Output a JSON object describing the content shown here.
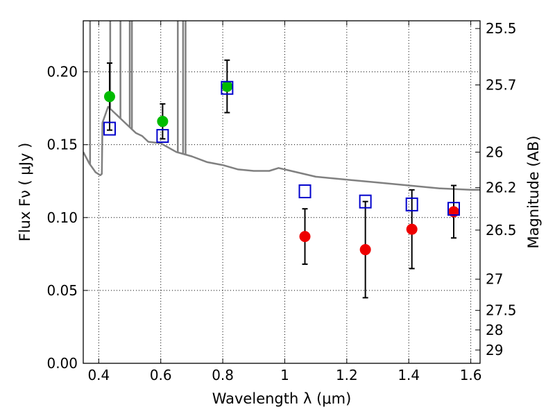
{
  "chart_data": {
    "type": "scatter",
    "title": "",
    "xlabel": "Wavelength  λ (μm)",
    "ylabel": "Flux  Fν  ( μJy )",
    "y2label": "Magnitude (AB)",
    "xlim": [
      0.35,
      1.63
    ],
    "ylim": [
      0.0,
      0.235
    ],
    "grid": true,
    "grid_style": "dotted",
    "x_ticks": [
      0.4,
      0.6,
      0.8,
      1.0,
      1.2,
      1.4,
      1.6
    ],
    "x_tick_labels": [
      "0.4",
      "0.6",
      "0.8",
      "1",
      "1.2",
      "1.4",
      "1.6"
    ],
    "y_ticks": [
      0.0,
      0.05,
      0.1,
      0.15,
      0.2
    ],
    "y_tick_labels": [
      "0.00",
      "0.05",
      "0.10",
      "0.15",
      "0.20"
    ],
    "y2_ticks": [
      {
        "label": "25.5",
        "flux": 0.2297
      },
      {
        "label": "25.7",
        "flux": 0.191
      },
      {
        "label": "26",
        "flux": 0.1449
      },
      {
        "label": "26.2",
        "flux": 0.1205
      },
      {
        "label": "26.5",
        "flux": 0.0914
      },
      {
        "label": "27",
        "flux": 0.0577
      },
      {
        "label": "27.5",
        "flux": 0.0363
      },
      {
        "label": "28",
        "flux": 0.0229
      },
      {
        "label": "29",
        "flux": 0.0091
      }
    ],
    "colors": {
      "model_sed": "#808080",
      "green_points": "#00bb00",
      "red_points": "#ee0000",
      "model_boxes": "#0000cc",
      "error_bars": "#000000"
    },
    "series": [
      {
        "kind": "points",
        "marker": "circle",
        "color": "#00bb00",
        "x": [
          0.435,
          0.606,
          0.814
        ],
        "y": [
          0.183,
          0.166,
          0.19
        ],
        "yerr": [
          0.023,
          0.012,
          0.018
        ]
      },
      {
        "kind": "points",
        "marker": "circle",
        "color": "#ee0000",
        "x": [
          1.065,
          1.26,
          1.41,
          1.545
        ],
        "y": [
          0.087,
          0.078,
          0.092,
          0.104
        ],
        "yerr": [
          0.019,
          0.033,
          0.027,
          0.018
        ]
      },
      {
        "kind": "model_photometry",
        "marker": "open-square",
        "color": "#0000cc",
        "x": [
          0.435,
          0.606,
          0.814,
          1.065,
          1.26,
          1.41,
          1.545
        ],
        "y": [
          0.161,
          0.156,
          0.189,
          0.118,
          0.111,
          0.109,
          0.106
        ]
      },
      {
        "kind": "model_sed",
        "color": "#808080",
        "x": [
          0.35,
          0.37,
          0.39,
          0.405,
          0.41,
          0.412,
          0.43,
          0.45,
          0.46,
          0.47,
          0.5,
          0.52,
          0.54,
          0.56,
          0.6,
          0.65,
          0.7,
          0.75,
          0.8,
          0.85,
          0.9,
          0.95,
          0.98,
          1.0,
          1.1,
          1.2,
          1.3,
          1.4,
          1.5,
          1.6,
          1.63
        ],
        "y": [
          0.145,
          0.137,
          0.131,
          0.129,
          0.13,
          0.165,
          0.176,
          0.172,
          0.17,
          0.168,
          0.162,
          0.158,
          0.156,
          0.152,
          0.151,
          0.145,
          0.142,
          0.138,
          0.136,
          0.133,
          0.132,
          0.132,
          0.134,
          0.133,
          0.128,
          0.126,
          0.124,
          0.122,
          0.12,
          0.119,
          0.119
        ]
      }
    ],
    "emission_lines": [
      {
        "x": 0.372,
        "peak": 0.235
      },
      {
        "x": 0.437,
        "peak": 0.235
      },
      {
        "x": 0.47,
        "peak": 0.235
      },
      {
        "x": 0.5,
        "peak": 0.235
      },
      {
        "x": 0.507,
        "peak": 0.235
      },
      {
        "x": 0.655,
        "peak": 0.235
      },
      {
        "x": 0.672,
        "peak": 0.235
      },
      {
        "x": 0.68,
        "peak": 0.235
      }
    ]
  }
}
